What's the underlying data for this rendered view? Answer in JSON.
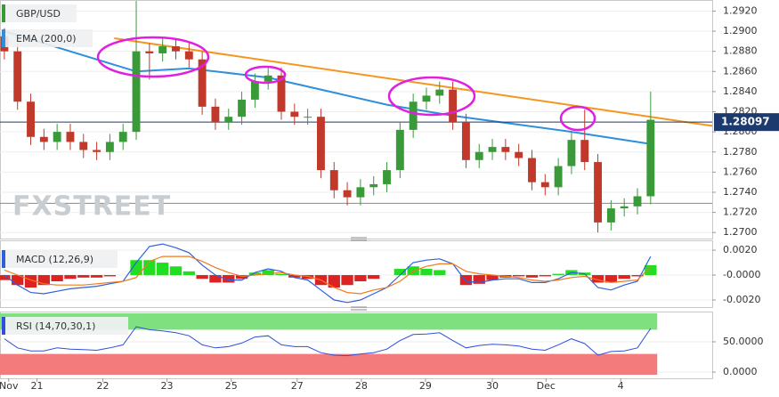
{
  "chart_data": [
    {
      "type": "candlestick",
      "symbol": "GBP/USD",
      "indicator": "EMA (200,0)",
      "watermark": "FXSTREET",
      "xlim": [
        -0.33,
        53.67
      ],
      "ylim": [
        1.2694,
        1.2931
      ],
      "yticks": [
        {
          "value": 1.27,
          "label": "1.2700"
        },
        {
          "value": 1.272,
          "label": "1.2720"
        },
        {
          "value": 1.274,
          "label": "1.2740"
        },
        {
          "value": 1.276,
          "label": "1.2760"
        },
        {
          "value": 1.278,
          "label": "1.2780"
        },
        {
          "value": 1.28,
          "label": "1.2800"
        },
        {
          "value": 1.282,
          "label": "1.2820"
        },
        {
          "value": 1.284,
          "label": "1.2840"
        },
        {
          "value": 1.286,
          "label": "1.2860"
        },
        {
          "value": 1.288,
          "label": "1.2880"
        },
        {
          "value": 1.29,
          "label": "1.2900"
        },
        {
          "value": 1.292,
          "label": "1.2920"
        }
      ],
      "up_color": "#3a9a3a",
      "down_color": "#c0392b",
      "open": [
        1.2895,
        1.288,
        1.283,
        1.2795,
        1.279,
        1.28,
        1.279,
        1.2782,
        1.278,
        1.279,
        1.28,
        1.288,
        1.2878,
        1.2885,
        1.288,
        1.2872,
        1.2825,
        1.281,
        1.2815,
        1.2832,
        1.285,
        1.2856,
        1.282,
        1.2815,
        1.2815,
        1.2762,
        1.2742,
        1.2735,
        1.2745,
        1.2748,
        1.2762,
        1.2802,
        1.283,
        1.2836,
        1.2842,
        1.281,
        1.2772,
        1.278,
        1.2785,
        1.278,
        1.2774,
        1.275,
        1.2745,
        1.2766,
        1.2792,
        1.277,
        1.271,
        1.2724,
        1.2726,
        1.2736
      ],
      "high": [
        1.2903,
        1.2888,
        1.2838,
        1.2803,
        1.2808,
        1.2808,
        1.2798,
        1.279,
        1.2798,
        1.2808,
        1.293,
        1.2888,
        1.2893,
        1.2893,
        1.2888,
        1.288,
        1.2833,
        1.2823,
        1.284,
        1.2858,
        1.2864,
        1.2864,
        1.2828,
        1.2823,
        1.2823,
        1.277,
        1.275,
        1.2753,
        1.2756,
        1.277,
        1.281,
        1.2838,
        1.2844,
        1.285,
        1.285,
        1.2818,
        1.2788,
        1.2793,
        1.2793,
        1.2788,
        1.2782,
        1.2758,
        1.2774,
        1.28,
        1.2822,
        1.2778,
        1.2732,
        1.2734,
        1.2744,
        1.284
      ],
      "low": [
        1.2872,
        1.2822,
        1.2787,
        1.2782,
        1.2782,
        1.2782,
        1.2774,
        1.2772,
        1.2772,
        1.2782,
        1.2792,
        1.2852,
        1.287,
        1.2872,
        1.2864,
        1.2817,
        1.2802,
        1.2802,
        1.2807,
        1.2824,
        1.2842,
        1.2812,
        1.2807,
        1.2807,
        1.2754,
        1.2734,
        1.2727,
        1.2727,
        1.2737,
        1.274,
        1.2754,
        1.2794,
        1.2822,
        1.2828,
        1.2802,
        1.2764,
        1.2764,
        1.2772,
        1.2772,
        1.2766,
        1.2742,
        1.2737,
        1.2737,
        1.2758,
        1.2762,
        1.27,
        1.2702,
        1.2716,
        1.2718,
        1.2728
      ],
      "close": [
        1.288,
        1.283,
        1.2795,
        1.279,
        1.28,
        1.279,
        1.2782,
        1.278,
        1.279,
        1.28,
        1.288,
        1.2878,
        1.2885,
        1.288,
        1.2872,
        1.2825,
        1.281,
        1.2815,
        1.2832,
        1.285,
        1.2856,
        1.282,
        1.2815,
        1.2815,
        1.2762,
        1.2742,
        1.2735,
        1.2745,
        1.2748,
        1.2762,
        1.2802,
        1.283,
        1.2836,
        1.2842,
        1.281,
        1.2772,
        1.278,
        1.2785,
        1.278,
        1.2774,
        1.275,
        1.2745,
        1.2766,
        1.2792,
        1.277,
        1.271,
        1.2724,
        1.2726,
        1.2736,
        1.2812
      ],
      "ema": {
        "color": "#2e8fdc",
        "x": [
          0,
          10,
          14,
          20,
          29,
          34,
          43,
          49
        ],
        "values": [
          1.29,
          1.286,
          1.2863,
          1.2854,
          1.2827,
          1.2816,
          1.28,
          1.2788
        ]
      },
      "trendline": {
        "color": "#f5961e",
        "x": [
          8.33,
          53.67
        ],
        "values": [
          1.2893,
          1.2806
        ]
      },
      "last_price": 1.28097,
      "support": 1.2729
    },
    {
      "type": "macd",
      "label": "MACD (12,26,9)",
      "xlim": [
        -0.33,
        53.67
      ],
      "ylim": [
        -0.00257,
        0.00279
      ],
      "yticks": [
        {
          "value": -0.002,
          "label": "-0.0020"
        },
        {
          "value": 0,
          "label": "-0.0000"
        },
        {
          "value": 0.002,
          "label": "0.0020"
        }
      ],
      "pos_color": "#22dd22",
      "neg_color": "#dd2222",
      "macd_color": "#2e5fdc",
      "signal_color": "#f07a1e",
      "histogram": [
        -0.0004,
        -0.0008,
        -0.001,
        -0.0008,
        -0.0005,
        -0.0003,
        -0.0002,
        -0.0002,
        -0.0001,
        0.0,
        0.0012,
        0.0012,
        0.001,
        0.0007,
        0.0003,
        -0.0003,
        -0.0006,
        -0.0006,
        -0.0003,
        0.0002,
        0.0004,
        0.0001,
        -0.0002,
        -0.0003,
        -0.0008,
        -0.001,
        -0.0008,
        -0.0005,
        -0.0003,
        0.0,
        0.0005,
        0.0007,
        0.0005,
        0.0004,
        0.0,
        -0.0008,
        -0.0007,
        -0.0004,
        -0.0002,
        -0.0001,
        -0.0002,
        -0.0001,
        0.0001,
        0.0004,
        0.0002,
        -0.0006,
        -0.0006,
        -0.0003,
        -0.0001,
        0.0008
      ],
      "macd": [
        0.0,
        -0.0008,
        -0.0014,
        -0.0015,
        -0.0013,
        -0.0011,
        -0.001,
        -0.0009,
        -0.0007,
        -0.0005,
        0.001,
        0.0023,
        0.0025,
        0.0022,
        0.0018,
        0.0008,
        0.0,
        -0.0004,
        -0.0004,
        0.0002,
        0.0005,
        0.0003,
        -0.0002,
        -0.0004,
        -0.0012,
        -0.002,
        -0.0022,
        -0.002,
        -0.0015,
        -0.001,
        0.0,
        0.001,
        0.0012,
        0.0013,
        0.0009,
        -0.0005,
        -0.0006,
        -0.0004,
        -0.0003,
        -0.0003,
        -0.0006,
        -0.0006,
        -0.0003,
        0.0002,
        0.0001,
        -0.001,
        -0.0012,
        -0.0008,
        -0.0005,
        0.0015
      ],
      "signal": [
        0.0004,
        0.0,
        -0.0004,
        -0.0007,
        -0.0008,
        -0.0008,
        -0.0008,
        -0.0007,
        -0.0006,
        -0.0005,
        -0.0002,
        0.0011,
        0.0015,
        0.0015,
        0.0015,
        0.0011,
        0.0006,
        0.0002,
        -0.0001,
        0.0,
        0.0001,
        0.0002,
        0.0,
        -0.0001,
        -0.0004,
        -0.001,
        -0.0014,
        -0.0015,
        -0.0012,
        -0.001,
        -0.0005,
        0.0003,
        0.0007,
        0.0009,
        0.0009,
        0.0003,
        0.0001,
        0.0,
        -0.0001,
        -0.0002,
        -0.0004,
        -0.0005,
        -0.0004,
        -0.0002,
        -0.0001,
        -0.0004,
        -0.0006,
        -0.0005,
        -0.0004,
        0.0007
      ]
    },
    {
      "type": "rsi",
      "label": "RSI (14,70,30,1)",
      "xlim": [
        -0.33,
        53.67
      ],
      "ylim": [
        -10.3,
        100
      ],
      "yticks": [
        {
          "value": 0,
          "label": "0.0000"
        },
        {
          "value": 50,
          "label": "50.0000"
        }
      ],
      "bands": [
        70,
        30
      ],
      "band_colors": [
        "#7fe07f",
        "#f47b7b"
      ],
      "color": "#2e4fdc",
      "values": [
        55,
        40,
        35,
        35,
        40,
        38,
        37,
        36,
        40,
        45,
        75,
        70,
        68,
        65,
        60,
        45,
        40,
        42,
        48,
        58,
        60,
        45,
        42,
        42,
        32,
        28,
        27,
        30,
        32,
        38,
        52,
        62,
        63,
        65,
        52,
        40,
        44,
        46,
        45,
        43,
        38,
        36,
        45,
        55,
        47,
        28,
        34,
        35,
        40,
        72
      ],
      "xticks": [
        {
          "value": 0.33,
          "label": "Nov"
        },
        {
          "value": 2.47,
          "label": "21"
        },
        {
          "value": 7.47,
          "label": "22"
        },
        {
          "value": 12.33,
          "label": "23"
        },
        {
          "value": 17.2,
          "label": "25"
        },
        {
          "value": 22.2,
          "label": "27"
        },
        {
          "value": 27.07,
          "label": "28"
        },
        {
          "value": 31.93,
          "label": "29"
        },
        {
          "value": 37.0,
          "label": "30"
        },
        {
          "value": 41.07,
          "label": "Dec"
        },
        {
          "value": 46.73,
          "label": "4"
        }
      ]
    }
  ]
}
